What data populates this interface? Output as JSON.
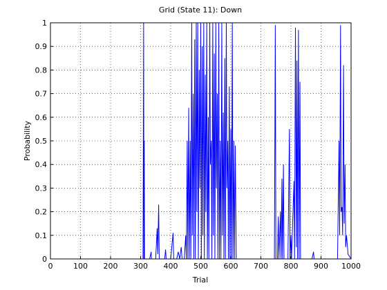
{
  "chart_data": {
    "type": "line",
    "title": "Grid (State 11): Down",
    "xlabel": "Trial",
    "ylabel": "Probability",
    "x": [
      0,
      300,
      308,
      310,
      311,
      312,
      313,
      330,
      335,
      336,
      350,
      355,
      357,
      360,
      362,
      380,
      383,
      385,
      400,
      408,
      410,
      420,
      425,
      430,
      435,
      438,
      445,
      450,
      452,
      455,
      457,
      460,
      462,
      465,
      467,
      470,
      472,
      475,
      477,
      480,
      482,
      485,
      487,
      490,
      492,
      495,
      497,
      500,
      502,
      505,
      507,
      510,
      512,
      515,
      517,
      520,
      522,
      525,
      527,
      530,
      532,
      535,
      537,
      540,
      542,
      545,
      547,
      550,
      552,
      555,
      557,
      560,
      562,
      565,
      567,
      570,
      572,
      575,
      577,
      580,
      582,
      585,
      587,
      590,
      592,
      595,
      597,
      600,
      602,
      605,
      607,
      610,
      612,
      615,
      618,
      630,
      700,
      745,
      748,
      750,
      755,
      758,
      760,
      765,
      767,
      770,
      772,
      775,
      777,
      790,
      795,
      797,
      800,
      802,
      810,
      812,
      815,
      818,
      820,
      822,
      825,
      827,
      830,
      832,
      840,
      870,
      875,
      877,
      900,
      955,
      960,
      962,
      965,
      967,
      970,
      972,
      975,
      977,
      980,
      982,
      985,
      990,
      1000
    ],
    "series": [
      {
        "name": "Down",
        "color": "#0000ff",
        "values": [
          0,
          0,
          0,
          1,
          0,
          0.5,
          0,
          0,
          0.03,
          0,
          0,
          0.13,
          0.02,
          0.23,
          0,
          0,
          0.04,
          0,
          0,
          0.11,
          0,
          0,
          0.03,
          0,
          0.05,
          0,
          0,
          0.1,
          0,
          0.5,
          0,
          0.64,
          0,
          0.5,
          0,
          1,
          0.1,
          0.7,
          0,
          0.93,
          0,
          1,
          0.2,
          1,
          0,
          0.8,
          0.3,
          1,
          0,
          0.9,
          0.1,
          1,
          0,
          0.78,
          0.2,
          1,
          0,
          0.6,
          0,
          1,
          0.4,
          0.5,
          0,
          1,
          0.1,
          0.87,
          0,
          1,
          0.3,
          0.7,
          0,
          1,
          0,
          0.5,
          0,
          1,
          0.1,
          0.62,
          0,
          0.85,
          0,
          1,
          0.3,
          0.5,
          0,
          0.73,
          0,
          0.55,
          0,
          1,
          0,
          0.5,
          0,
          0.48,
          0,
          0,
          0,
          0,
          0.99,
          0,
          0,
          0.18,
          0,
          0.2,
          0,
          0.34,
          0,
          0.4,
          0,
          0,
          0.55,
          0,
          0.1,
          0,
          0.33,
          0,
          0.98,
          0.05,
          0.84,
          0,
          0.97,
          0,
          0.75,
          0,
          0,
          0,
          0.03,
          0,
          0,
          0,
          0.5,
          0.1,
          0.99,
          0.2,
          0.22,
          0.1,
          0.82,
          0.15,
          0.4,
          0.05,
          0.1,
          0.02,
          0
        ]
      }
    ],
    "xlim": [
      0,
      1000
    ],
    "xticks": [
      0,
      100,
      200,
      300,
      400,
      500,
      600,
      700,
      800,
      900,
      1000
    ],
    "ylim": [
      0,
      1
    ],
    "yticks": [
      0,
      0.1,
      0.2,
      0.3,
      0.4,
      0.5,
      0.6,
      0.7,
      0.8,
      0.9,
      1
    ],
    "grid": true
  }
}
